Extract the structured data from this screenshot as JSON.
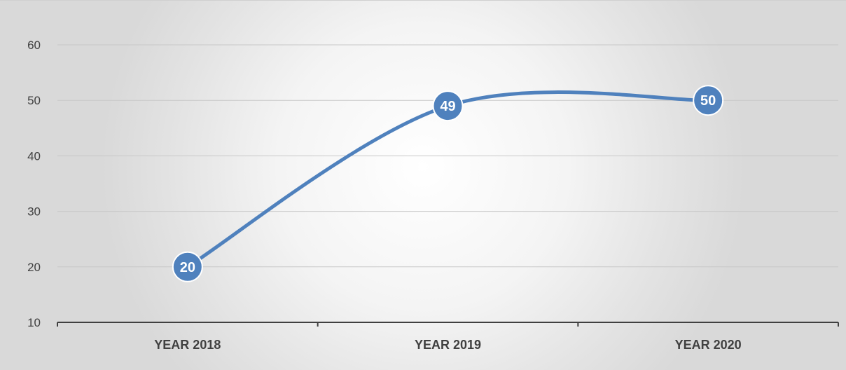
{
  "chart_data": {
    "type": "line",
    "categories": [
      "YEAR 2018",
      "YEAR 2019",
      "YEAR 2020"
    ],
    "series": [
      {
        "values": [
          20,
          49,
          50
        ]
      }
    ],
    "ylim": [
      10,
      60
    ],
    "yticks": [
      10,
      20,
      30,
      40,
      50,
      60
    ],
    "yticklabels": [
      "10",
      "20",
      "30",
      "40",
      "50",
      "60"
    ],
    "data_labels": [
      "20",
      "49",
      "50"
    ],
    "smooth": true,
    "grid": true,
    "legend": "none",
    "colors": {
      "series": "#4f81bd",
      "grid": "#c8c8c8",
      "axis": "#404040",
      "label_text": "#ffffff"
    }
  }
}
